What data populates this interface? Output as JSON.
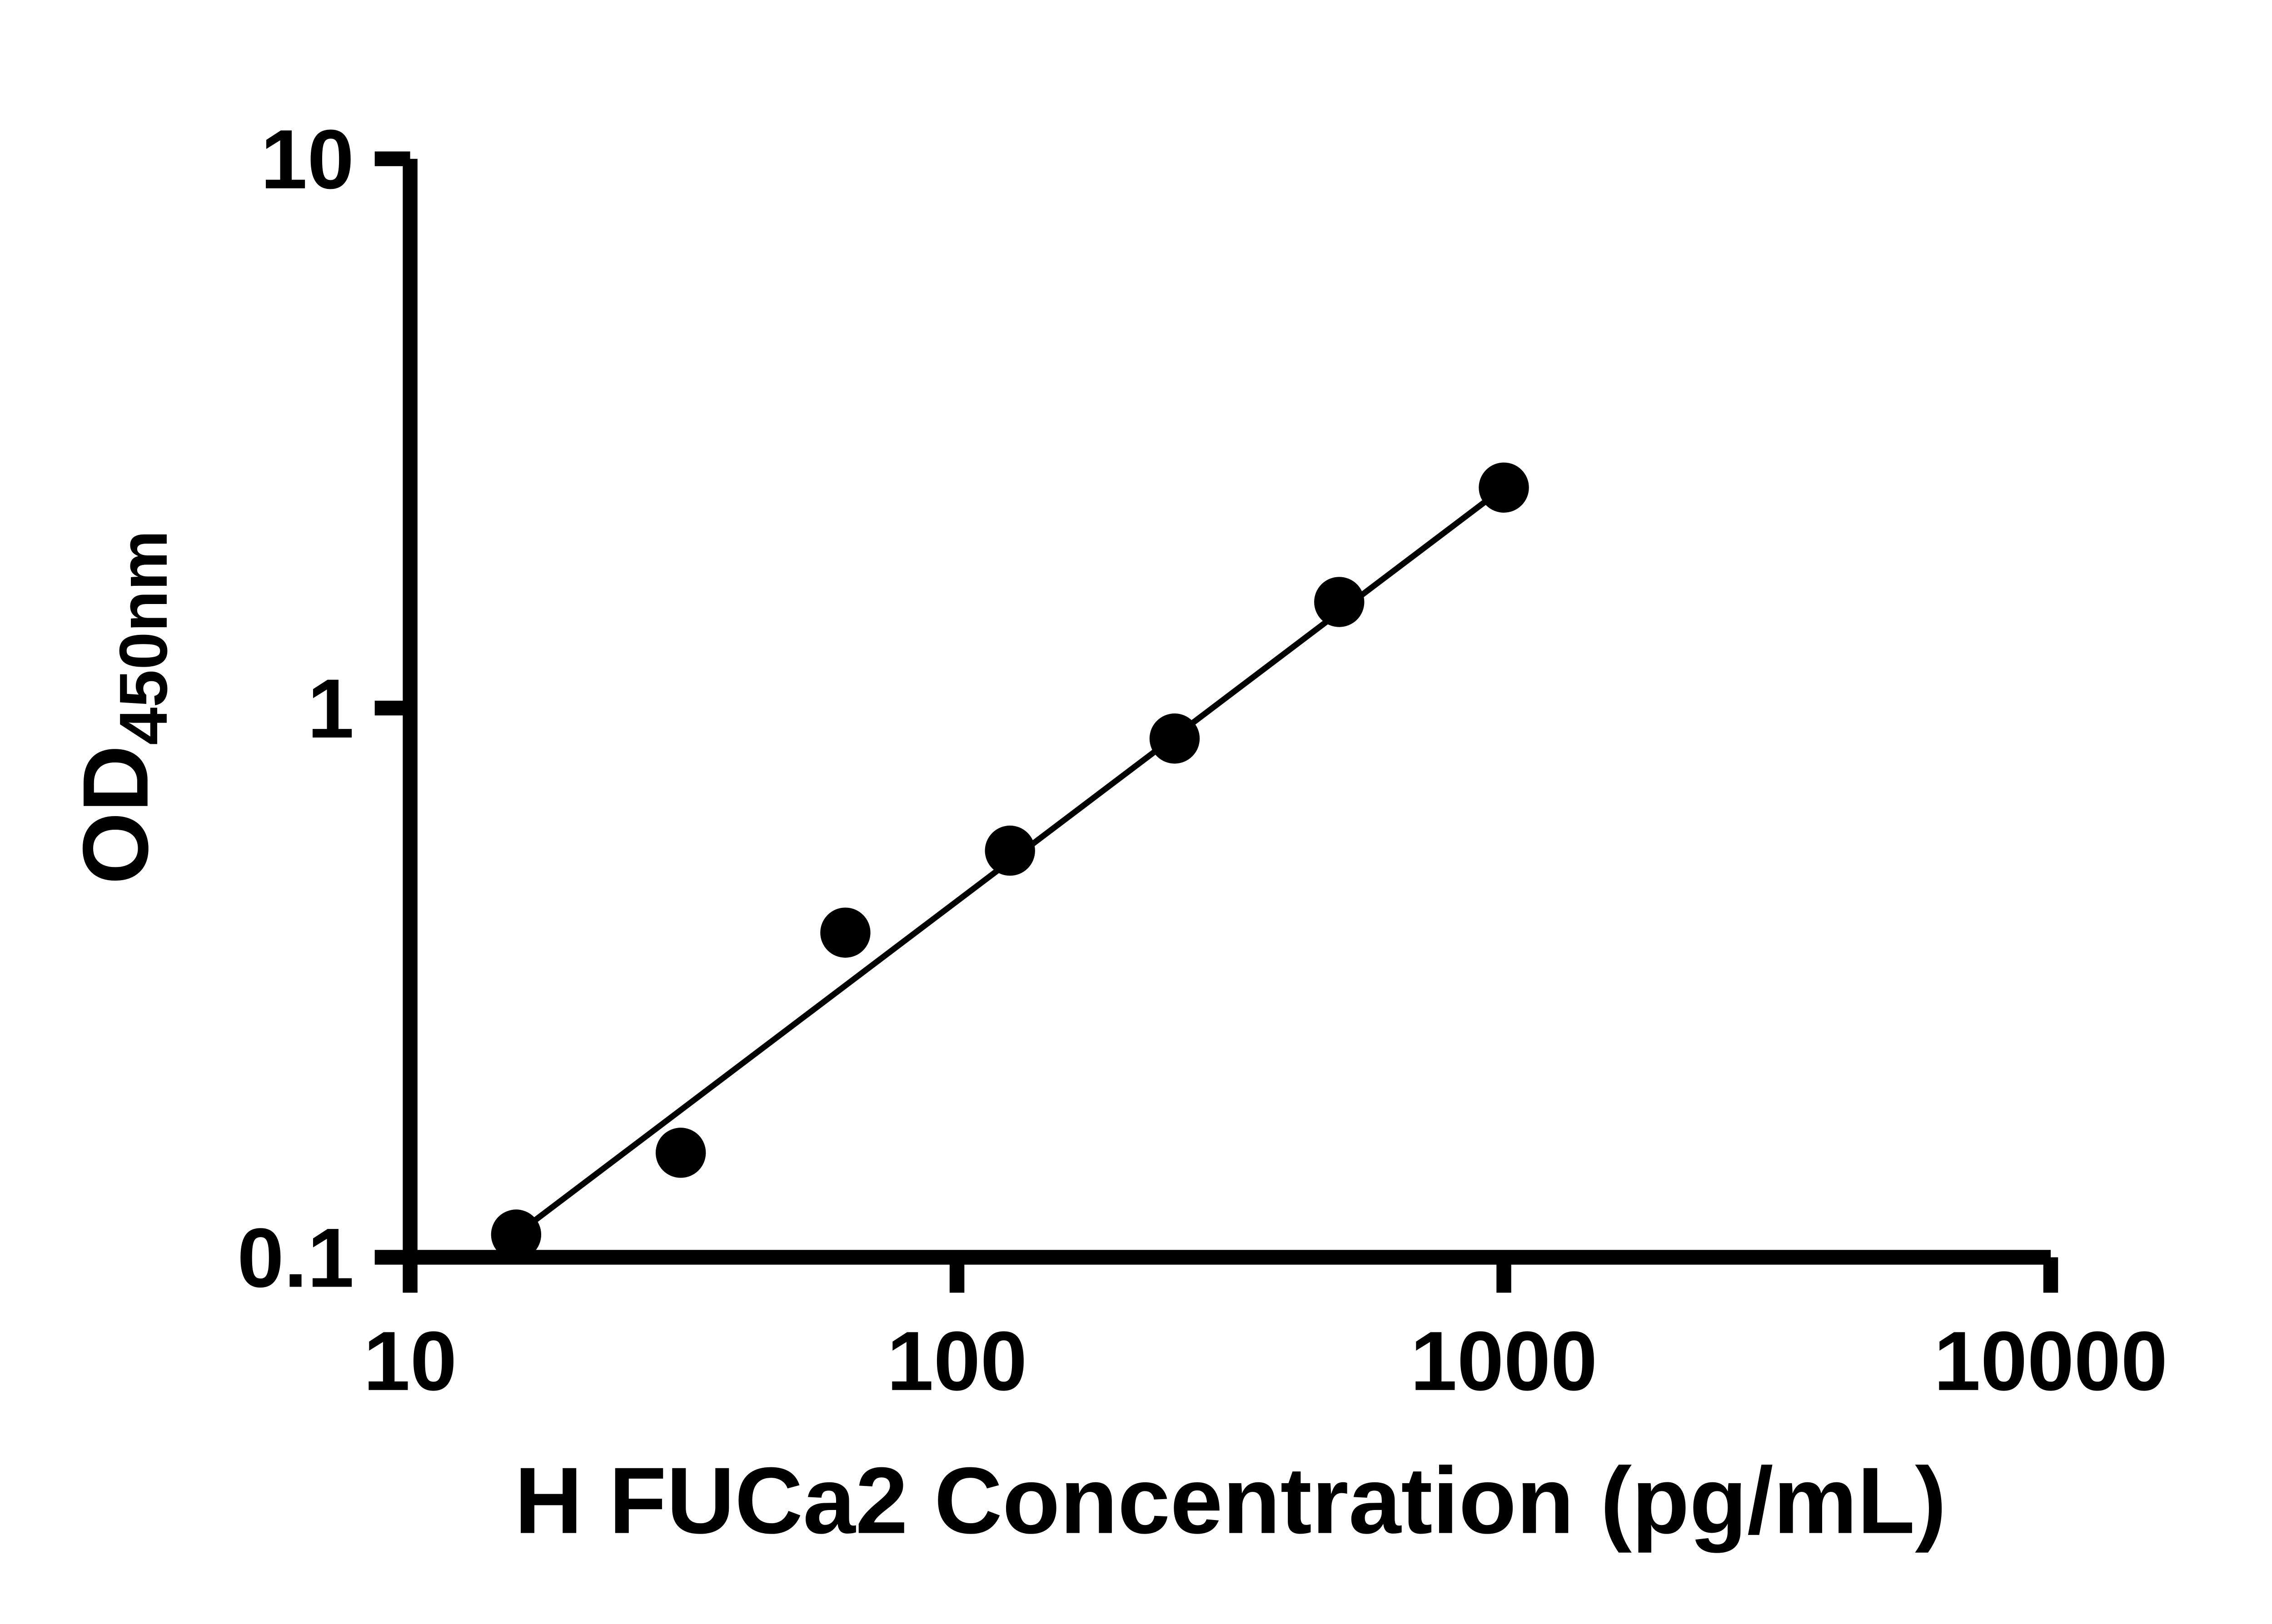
{
  "page": {
    "background_color": "#ffffff"
  },
  "chart_data": {
    "type": "scatter",
    "title": "",
    "xlabel": "H FUCa2 Concentration (pg/mL)",
    "ylabel": "OD",
    "ylabel_subscript": "450nm",
    "xscale": "log",
    "yscale": "log",
    "xlim": [
      10,
      10000
    ],
    "ylim": [
      0.1,
      10
    ],
    "x_ticks": [
      10,
      100,
      1000,
      10000
    ],
    "x_tick_labels": [
      "10",
      "100",
      "1000",
      "10000"
    ],
    "y_ticks": [
      0.1,
      1,
      10
    ],
    "y_tick_labels": [
      "0.1",
      "1",
      "10"
    ],
    "grid": false,
    "legend": false,
    "marker_color": "#000000",
    "line_color": "#000000",
    "axis_color": "#000000",
    "points": [
      {
        "x": 15.625,
        "y": 0.11
      },
      {
        "x": 31.25,
        "y": 0.155
      },
      {
        "x": 62.5,
        "y": 0.39
      },
      {
        "x": 125,
        "y": 0.55
      },
      {
        "x": 250,
        "y": 0.88
      },
      {
        "x": 500,
        "y": 1.56
      },
      {
        "x": 1000,
        "y": 2.52
      }
    ],
    "trend_line": {
      "x1": 15.625,
      "y1": 0.11,
      "x2": 1000,
      "y2": 2.52
    }
  }
}
